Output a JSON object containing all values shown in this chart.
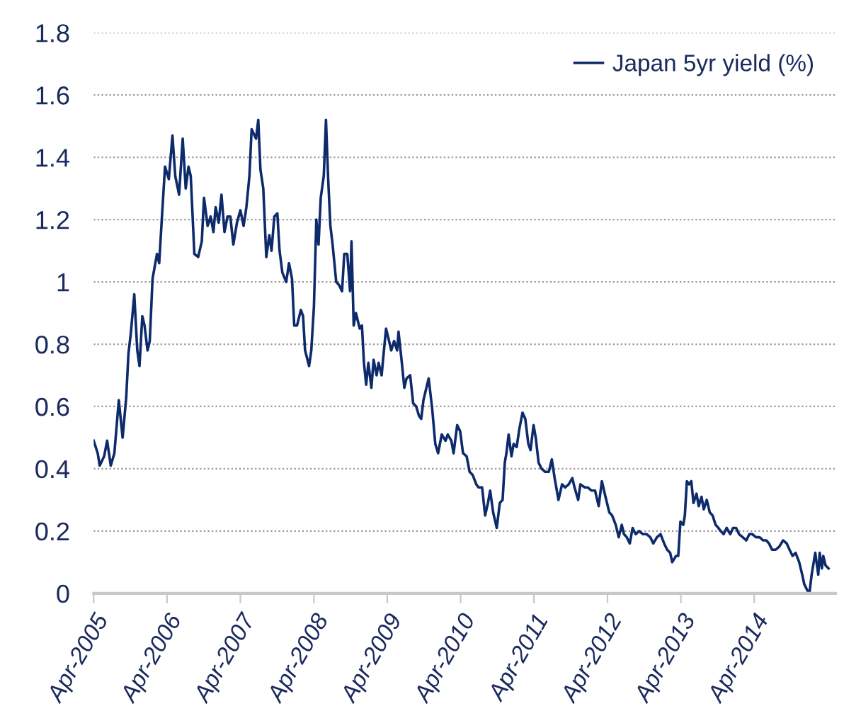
{
  "chart_data": {
    "type": "line",
    "x": [
      "2005-04-01",
      "2005-04-21",
      "2005-05-01",
      "2005-05-23",
      "2005-06-07",
      "2005-06-25",
      "2005-07-13",
      "2005-08-04",
      "2005-08-23",
      "2005-09-10",
      "2005-09-21",
      "2005-10-02",
      "2005-10-20",
      "2005-11-04",
      "2005-11-15",
      "2005-11-29",
      "2005-12-10",
      "2005-12-25",
      "2006-01-05",
      "2006-01-19",
      "2006-02-10",
      "2006-02-21",
      "2006-03-04",
      "2006-03-22",
      "2006-04-10",
      "2006-04-28",
      "2006-05-12",
      "2006-05-31",
      "2006-06-18",
      "2006-07-03",
      "2006-07-17",
      "2006-07-28",
      "2006-08-15",
      "2006-09-03",
      "2006-09-21",
      "2006-10-02",
      "2006-10-20",
      "2006-11-04",
      "2006-11-18",
      "2006-11-29",
      "2006-12-14",
      "2006-12-28",
      "2007-01-12",
      "2007-01-27",
      "2007-02-10",
      "2007-02-25",
      "2007-03-15",
      "2007-04-01",
      "2007-04-17",
      "2007-05-01",
      "2007-05-16",
      "2007-05-27",
      "2007-06-18",
      "2007-06-29",
      "2007-07-10",
      "2007-07-24",
      "2007-08-08",
      "2007-08-23",
      "2007-09-03",
      "2007-09-17",
      "2007-10-02",
      "2007-10-13",
      "2007-10-27",
      "2007-11-15",
      "2007-11-29",
      "2007-12-14",
      "2007-12-25",
      "2008-01-08",
      "2008-01-27",
      "2008-02-07",
      "2008-02-17",
      "2008-03-08",
      "2008-03-19",
      "2008-04-01",
      "2008-04-13",
      "2008-04-24",
      "2008-05-05",
      "2008-05-20",
      "2008-05-31",
      "2008-06-11",
      "2008-06-22",
      "2008-07-03",
      "2008-07-21",
      "2008-08-04",
      "2008-08-19",
      "2008-08-30",
      "2008-09-14",
      "2008-09-28",
      "2008-10-05",
      "2008-10-16",
      "2008-10-27",
      "2008-11-15",
      "2008-11-26",
      "2008-12-06",
      "2008-12-17",
      "2008-12-28",
      "2009-01-12",
      "2009-01-23",
      "2009-02-07",
      "2009-02-17",
      "2009-03-04",
      "2009-03-11",
      "2009-03-26",
      "2009-04-10",
      "2009-04-21",
      "2009-05-05",
      "2009-05-20",
      "2009-05-27",
      "2009-06-11",
      "2009-06-25",
      "2009-07-06",
      "2009-07-24",
      "2009-08-08",
      "2009-08-23",
      "2009-09-06",
      "2009-09-17",
      "2009-09-28",
      "2009-10-09",
      "2009-10-24",
      "2009-11-11",
      "2009-11-26",
      "2009-12-10",
      "2009-12-28",
      "2010-01-16",
      "2010-01-27",
      "2010-02-14",
      "2010-02-25",
      "2010-03-15",
      "2010-03-30",
      "2010-04-13",
      "2010-05-01",
      "2010-05-16",
      "2010-05-31",
      "2010-06-18",
      "2010-06-29",
      "2010-07-17",
      "2010-08-01",
      "2010-08-15",
      "2010-08-26",
      "2010-09-10",
      "2010-09-28",
      "2010-10-13",
      "2010-10-27",
      "2010-11-07",
      "2010-11-15",
      "2010-11-26",
      "2010-12-10",
      "2010-12-21",
      "2011-01-05",
      "2011-01-19",
      "2011-02-03",
      "2011-02-17",
      "2011-03-04",
      "2011-03-15",
      "2011-03-30",
      "2011-04-10",
      "2011-04-24",
      "2011-05-09",
      "2011-05-27",
      "2011-06-14",
      "2011-06-29",
      "2011-07-13",
      "2011-08-01",
      "2011-08-19",
      "2011-09-03",
      "2011-09-21",
      "2011-10-09",
      "2011-10-20",
      "2011-11-07",
      "2011-11-18",
      "2011-12-10",
      "2011-12-25",
      "2012-01-12",
      "2012-01-30",
      "2012-02-17",
      "2012-03-04",
      "2012-03-22",
      "2012-04-10",
      "2012-04-24",
      "2012-05-12",
      "2012-05-27",
      "2012-06-11",
      "2012-06-22",
      "2012-07-06",
      "2012-07-21",
      "2012-08-04",
      "2012-08-19",
      "2012-09-06",
      "2012-09-24",
      "2012-10-13",
      "2012-10-31",
      "2012-11-15",
      "2012-12-03",
      "2012-12-21",
      "2013-01-08",
      "2013-01-23",
      "2013-02-07",
      "2013-02-17",
      "2013-03-08",
      "2013-03-19",
      "2013-03-30",
      "2013-04-13",
      "2013-04-21",
      "2013-05-01",
      "2013-05-12",
      "2013-05-23",
      "2013-06-03",
      "2013-06-18",
      "2013-06-29",
      "2013-07-13",
      "2013-07-24",
      "2013-08-08",
      "2013-08-23",
      "2013-09-06",
      "2013-09-21",
      "2013-10-05",
      "2013-10-16",
      "2013-10-31",
      "2013-11-15",
      "2013-12-03",
      "2013-12-17",
      "2014-01-01",
      "2014-01-16",
      "2014-02-03",
      "2014-02-21",
      "2014-03-08",
      "2014-03-22",
      "2014-04-10",
      "2014-04-28",
      "2014-05-16",
      "2014-05-31",
      "2014-06-14",
      "2014-06-29",
      "2014-07-17",
      "2014-08-04",
      "2014-08-23",
      "2014-09-10",
      "2014-09-24",
      "2014-10-09",
      "2014-10-24",
      "2014-11-11",
      "2014-11-26",
      "2014-12-06",
      "2014-12-21",
      "2015-01-01",
      "2015-01-12",
      "2015-01-30",
      "2015-02-14",
      "2015-02-21",
      "2015-03-04",
      "2015-03-11",
      "2015-03-22",
      "2015-04-06"
    ],
    "series": [
      {
        "name": "Japan 5yr yield (%)",
        "color": "#0d2a6b",
        "values": [
          0.49,
          0.45,
          0.41,
          0.44,
          0.49,
          0.41,
          0.45,
          0.62,
          0.5,
          0.63,
          0.77,
          0.83,
          0.96,
          0.78,
          0.73,
          0.89,
          0.86,
          0.78,
          0.81,
          1.01,
          1.09,
          1.06,
          1.18,
          1.37,
          1.33,
          1.47,
          1.34,
          1.28,
          1.46,
          1.3,
          1.37,
          1.34,
          1.09,
          1.08,
          1.13,
          1.27,
          1.18,
          1.21,
          1.16,
          1.24,
          1.19,
          1.28,
          1.16,
          1.21,
          1.21,
          1.12,
          1.19,
          1.23,
          1.18,
          1.24,
          1.34,
          1.49,
          1.46,
          1.52,
          1.36,
          1.3,
          1.08,
          1.15,
          1.1,
          1.21,
          1.22,
          1.1,
          1.03,
          1.0,
          1.06,
          1.01,
          0.86,
          0.86,
          0.91,
          0.89,
          0.78,
          0.73,
          0.78,
          0.92,
          1.2,
          1.12,
          1.27,
          1.34,
          1.52,
          1.33,
          1.18,
          1.12,
          1.0,
          0.99,
          0.97,
          1.09,
          1.09,
          0.97,
          1.13,
          0.86,
          0.9,
          0.85,
          0.86,
          0.74,
          0.67,
          0.74,
          0.66,
          0.75,
          0.7,
          0.74,
          0.7,
          0.75,
          0.85,
          0.81,
          0.78,
          0.81,
          0.78,
          0.84,
          0.75,
          0.66,
          0.69,
          0.7,
          0.61,
          0.6,
          0.57,
          0.56,
          0.62,
          0.65,
          0.69,
          0.59,
          0.48,
          0.45,
          0.51,
          0.49,
          0.51,
          0.49,
          0.45,
          0.54,
          0.52,
          0.45,
          0.44,
          0.39,
          0.38,
          0.35,
          0.34,
          0.34,
          0.25,
          0.29,
          0.33,
          0.26,
          0.21,
          0.29,
          0.3,
          0.42,
          0.45,
          0.51,
          0.44,
          0.48,
          0.47,
          0.53,
          0.58,
          0.56,
          0.48,
          0.46,
          0.54,
          0.5,
          0.42,
          0.4,
          0.39,
          0.39,
          0.43,
          0.37,
          0.3,
          0.35,
          0.34,
          0.35,
          0.37,
          0.34,
          0.3,
          0.35,
          0.34,
          0.34,
          0.33,
          0.33,
          0.28,
          0.36,
          0.31,
          0.26,
          0.25,
          0.22,
          0.18,
          0.22,
          0.19,
          0.18,
          0.16,
          0.21,
          0.19,
          0.2,
          0.19,
          0.19,
          0.18,
          0.16,
          0.18,
          0.19,
          0.16,
          0.14,
          0.13,
          0.1,
          0.12,
          0.12,
          0.23,
          0.22,
          0.25,
          0.36,
          0.35,
          0.36,
          0.29,
          0.32,
          0.28,
          0.31,
          0.27,
          0.3,
          0.26,
          0.25,
          0.22,
          0.21,
          0.2,
          0.19,
          0.21,
          0.19,
          0.21,
          0.21,
          0.19,
          0.18,
          0.17,
          0.19,
          0.19,
          0.18,
          0.18,
          0.17,
          0.17,
          0.16,
          0.14,
          0.14,
          0.15,
          0.17,
          0.16,
          0.14,
          0.12,
          0.13,
          0.1,
          0.06,
          0.03,
          0.01,
          0.0,
          0.06,
          0.13,
          0.06,
          0.13,
          0.08,
          0.12,
          0.09,
          0.08
        ]
      }
    ],
    "xlim": [
      "2005-04-01",
      "2015-05-11"
    ],
    "xticks": [
      {
        "value": "2005-04-01",
        "label": "Apr-2005"
      },
      {
        "value": "2006-04-01",
        "label": "Apr-2006"
      },
      {
        "value": "2007-04-01",
        "label": "Apr-2007"
      },
      {
        "value": "2008-04-01",
        "label": "Apr-2008"
      },
      {
        "value": "2009-04-01",
        "label": "Apr-2009"
      },
      {
        "value": "2010-04-01",
        "label": "Apr-2010"
      },
      {
        "value": "2011-04-01",
        "label": "Apr-2011"
      },
      {
        "value": "2012-04-01",
        "label": "Apr-2012"
      },
      {
        "value": "2013-04-01",
        "label": "Apr-2013"
      },
      {
        "value": "2014-04-01",
        "label": "Apr-2014"
      }
    ],
    "ylim": [
      0,
      1.8
    ],
    "yticks": [
      0,
      0.2,
      0.4,
      0.6,
      0.8,
      1,
      1.2,
      1.4,
      1.6,
      1.8
    ],
    "grid": "y",
    "legend": "top right",
    "marker": "none",
    "line_style": "solid"
  }
}
